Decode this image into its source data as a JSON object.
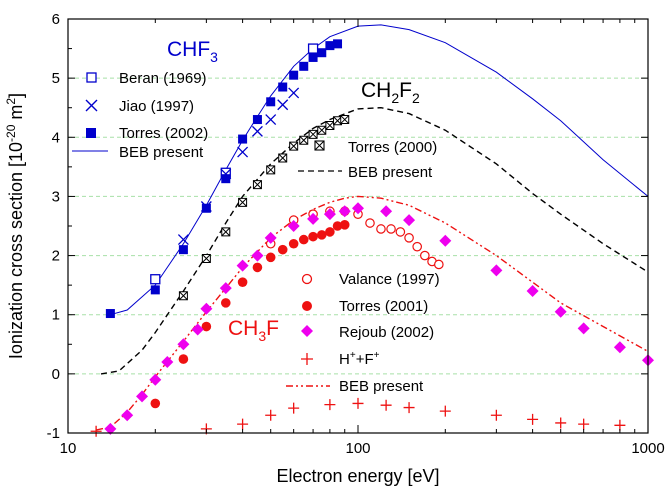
{
  "chart_data": {
    "type": "scatter",
    "xlabel": "Electron energy [eV]",
    "ylabel_main": "Ionization cross section [10",
    "ylabel_sup": "-20",
    "ylabel_unit": " m",
    "ylabel_unit_sup": "2",
    "ylabel_close": "]",
    "x_scale": "log",
    "xlim": [
      10,
      1000
    ],
    "ylim": [
      -1,
      6
    ],
    "x_ticks": [
      10,
      100,
      1000
    ],
    "x_tick_labels": [
      "10",
      "100",
      "1000"
    ],
    "y_ticks": [
      -1,
      0,
      1,
      2,
      3,
      4,
      5,
      6
    ],
    "y_tick_labels": [
      "-1",
      "0",
      "1",
      "2",
      "3",
      "4",
      "5",
      "6"
    ],
    "grid": "horizontal dashed",
    "colors": {
      "chf3": "#0000cc",
      "ch2f2": "#000000",
      "ch3f": "#ee1111",
      "rejoub": "#ee00ee",
      "grid": "#a8e0a8"
    },
    "molecule_labels": [
      {
        "id": "chf3",
        "parts": [
          "CHF",
          "3"
        ],
        "color": "#0000cc"
      },
      {
        "id": "ch2f2",
        "parts": [
          "CH",
          "2",
          "F",
          "2"
        ],
        "color": "#000000"
      },
      {
        "id": "ch3f",
        "parts": [
          "CH",
          "3",
          "F"
        ],
        "color": "#ee1111"
      }
    ],
    "legend_chf3": {
      "placement": "top-left",
      "entries": [
        {
          "label": "Beran (1969)",
          "marker": "open-square"
        },
        {
          "label": "Jiao (1997)",
          "marker": "x"
        },
        {
          "label": "Torres (2002)",
          "marker": "filled-square"
        },
        {
          "label": "BEB present",
          "marker": "solid-line"
        }
      ]
    },
    "legend_ch2f2": {
      "placement": "center",
      "entries": [
        {
          "label": "Torres (2000)",
          "marker": "boxed-x"
        },
        {
          "label": "BEB present",
          "marker": "dashed-line"
        }
      ]
    },
    "legend_ch3f": {
      "placement": "lower-center",
      "entries": [
        {
          "label": "Valance (1997)",
          "marker": "open-circle"
        },
        {
          "label": "Torres (2001)",
          "marker": "filled-circle"
        },
        {
          "label": "Rejoub (2002)",
          "marker": "diamond"
        },
        {
          "label_parts": [
            "H",
            "+",
            "+F",
            "+"
          ],
          "marker": "plus"
        },
        {
          "label": "BEB present",
          "marker": "dash-dot-line"
        }
      ]
    },
    "series": [
      {
        "id": "chf3_beran",
        "name": "Beran (1969)",
        "marker": "open-square",
        "color": "#0000cc",
        "x": [
          20,
          35,
          70
        ],
        "y": [
          1.6,
          3.4,
          5.5
        ]
      },
      {
        "id": "chf3_jiao",
        "name": "Jiao (1997)",
        "marker": "x",
        "color": "#0000cc",
        "x": [
          25,
          30,
          35,
          40,
          45,
          50,
          55,
          60
        ],
        "y": [
          2.27,
          2.83,
          3.38,
          3.75,
          4.1,
          4.3,
          4.55,
          4.75
        ]
      },
      {
        "id": "chf3_torres",
        "name": "Torres (2002)",
        "marker": "filled-square",
        "color": "#0000cc",
        "x": [
          14,
          20,
          25,
          30,
          35,
          40,
          45,
          50,
          55,
          60,
          65,
          70,
          75,
          80,
          85
        ],
        "y": [
          1.02,
          1.42,
          2.1,
          2.8,
          3.3,
          3.97,
          4.3,
          4.6,
          4.85,
          5.05,
          5.2,
          5.35,
          5.43,
          5.55,
          5.58
        ]
      },
      {
        "id": "chf3_beb",
        "name": "BEB present",
        "line": "solid",
        "color": "#0000cc",
        "x": [
          14,
          16,
          20,
          25,
          30,
          35,
          40,
          45,
          50,
          60,
          70,
          80,
          100,
          120,
          150,
          200,
          300,
          400,
          500,
          700,
          1000
        ],
        "y": [
          1.0,
          1.08,
          1.5,
          2.2,
          2.85,
          3.45,
          3.95,
          4.35,
          4.7,
          5.2,
          5.5,
          5.7,
          5.88,
          5.9,
          5.82,
          5.6,
          5.1,
          4.65,
          4.28,
          3.62,
          3.0
        ]
      },
      {
        "id": "ch2f2_torres",
        "name": "Torres (2000)",
        "marker": "boxed-x",
        "color": "#000000",
        "x": [
          25,
          30,
          35,
          40,
          45,
          50,
          55,
          60,
          65,
          70,
          75,
          80,
          85,
          90
        ],
        "y": [
          1.32,
          1.95,
          2.4,
          2.9,
          3.2,
          3.45,
          3.65,
          3.85,
          3.95,
          4.05,
          4.12,
          4.2,
          4.28,
          4.3
        ]
      },
      {
        "id": "ch2f2_beb",
        "name": "BEB present",
        "line": "dashed",
        "color": "#000000",
        "x": [
          13,
          15,
          18,
          20,
          25,
          30,
          35,
          40,
          50,
          60,
          70,
          80,
          100,
          120,
          150,
          200,
          300,
          400,
          500,
          700,
          1000
        ],
        "y": [
          0.0,
          0.05,
          0.4,
          0.7,
          1.4,
          2.0,
          2.55,
          3.0,
          3.55,
          3.9,
          4.15,
          4.3,
          4.48,
          4.5,
          4.4,
          4.12,
          3.55,
          3.05,
          2.7,
          2.2,
          1.72
        ]
      },
      {
        "id": "ch3f_valance",
        "name": "Valance (1997)",
        "marker": "open-circle",
        "color": "#ee1111",
        "x": [
          50,
          60,
          70,
          80,
          90,
          100,
          110,
          120,
          130,
          140,
          150,
          160,
          170,
          180,
          190
        ],
        "y": [
          2.2,
          2.6,
          2.7,
          2.75,
          2.75,
          2.7,
          2.55,
          2.45,
          2.45,
          2.4,
          2.3,
          2.15,
          2.0,
          1.9,
          1.85
        ]
      },
      {
        "id": "ch3f_torres",
        "name": "Torres (2001)",
        "marker": "filled-circle",
        "color": "#ee1111",
        "x": [
          20,
          25,
          30,
          35,
          40,
          45,
          50,
          55,
          60,
          65,
          70,
          75,
          80,
          85,
          90
        ],
        "y": [
          -0.5,
          0.25,
          0.8,
          1.2,
          1.55,
          1.8,
          1.97,
          2.1,
          2.2,
          2.27,
          2.32,
          2.35,
          2.4,
          2.5,
          2.52
        ]
      },
      {
        "id": "ch3f_rejoub",
        "name": "Rejoub (2002)",
        "marker": "diamond",
        "color": "#ee00ee",
        "x": [
          14,
          16,
          18,
          20,
          22,
          25,
          28,
          30,
          35,
          40,
          45,
          50,
          60,
          70,
          80,
          90,
          100,
          125,
          150,
          200,
          300,
          400,
          500,
          600,
          800,
          1000
        ],
        "y": [
          -0.93,
          -0.7,
          -0.38,
          -0.1,
          0.2,
          0.5,
          0.75,
          1.1,
          1.45,
          1.83,
          2.0,
          2.3,
          2.5,
          2.62,
          2.7,
          2.75,
          2.8,
          2.75,
          2.6,
          2.25,
          1.75,
          1.4,
          1.05,
          0.77,
          0.45,
          0.23
        ]
      },
      {
        "id": "ch3f_hf",
        "name": "H+ + F+",
        "marker": "plus",
        "color": "#ee1111",
        "x": [
          12.5,
          30,
          40,
          50,
          60,
          80,
          100,
          125,
          150,
          200,
          300,
          400,
          500,
          600,
          800
        ],
        "y": [
          -0.97,
          -0.93,
          -0.85,
          -0.7,
          -0.58,
          -0.52,
          -0.5,
          -0.53,
          -0.57,
          -0.63,
          -0.7,
          -0.77,
          -0.83,
          -0.85,
          -0.87
        ]
      },
      {
        "id": "ch3f_beb",
        "name": "BEB present",
        "line": "dashdot",
        "color": "#ee1111",
        "x": [
          12.5,
          14,
          16,
          18,
          20,
          25,
          30,
          35,
          40,
          50,
          60,
          70,
          80,
          90,
          100,
          120,
          150,
          200,
          300,
          400,
          500,
          700,
          1000
        ],
        "y": [
          -0.95,
          -0.9,
          -0.65,
          -0.35,
          -0.05,
          0.55,
          1.05,
          1.45,
          1.8,
          2.3,
          2.6,
          2.78,
          2.9,
          2.97,
          3.0,
          2.97,
          2.85,
          2.55,
          2.0,
          1.55,
          1.2,
          0.8,
          0.38
        ]
      }
    ]
  }
}
